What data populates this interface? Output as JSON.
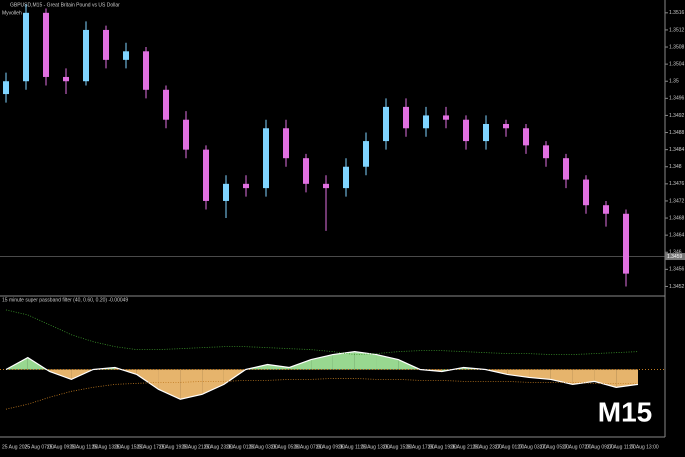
{
  "header": {
    "symbol_title": "GBPUSD,M15 - Great Britain Pound vs US Dollar",
    "indicator_name": "Myvolleh"
  },
  "timeframe_badge": "M15",
  "time_axis": [
    "25 Aug 2025",
    "25 Aug 07:00",
    "25 Aug 09:00",
    "25 Aug 11:00",
    "25 Aug 13:00",
    "25 Aug 15:00",
    "25 Aug 17:00",
    "25 Aug 19:00",
    "25 Aug 21:00",
    "25 Aug 23:00",
    "26 Aug 01:00",
    "26 Aug 03:00",
    "26 Aug 05:00",
    "26 Aug 07:00",
    "26 Aug 09:00",
    "26 Aug 11:00",
    "26 Aug 13:00",
    "26 Aug 15:00",
    "26 Aug 17:00",
    "26 Aug 19:00",
    "26 Aug 21:00",
    "26 Aug 23:00",
    "27 Aug 01:00",
    "27 Aug 03:00",
    "27 Aug 05:00",
    "27 Aug 07:00",
    "27 Aug 09:00",
    "27 Aug 11:00",
    "27 Aug 13:00"
  ],
  "chart_data": [
    {
      "type": "candlestick",
      "up_color": "#7fd4ff",
      "down_color": "#e070e0",
      "ylim": [
        1.345,
        1.3519
      ],
      "yticks": [
        1.3452,
        1.3456,
        1.346,
        1.3464,
        1.3468,
        1.3472,
        1.3476,
        1.348,
        1.3484,
        1.3488,
        1.3492,
        1.3496,
        1.35,
        1.3504,
        1.3508,
        1.3512,
        1.3516
      ],
      "price_line": 1.3459,
      "open": [
        1.3497,
        1.35,
        1.3516,
        1.3501,
        1.35,
        1.3512,
        1.3505,
        1.3507,
        1.3498,
        1.3491,
        1.3484,
        1.3472,
        1.3476,
        1.3475,
        1.3489,
        1.3482,
        1.3476,
        1.3475,
        1.348,
        1.3486,
        1.3494,
        1.3489,
        1.3492,
        1.3491,
        1.3486,
        1.349,
        1.3489,
        1.3485,
        1.3482,
        1.3477,
        1.3471,
        1.3469
      ],
      "close": [
        1.35,
        1.3516,
        1.3501,
        1.35,
        1.3512,
        1.3505,
        1.3507,
        1.3498,
        1.3491,
        1.3484,
        1.3472,
        1.3476,
        1.3475,
        1.3489,
        1.3482,
        1.3476,
        1.3475,
        1.348,
        1.3486,
        1.3494,
        1.3489,
        1.3492,
        1.3491,
        1.3486,
        1.349,
        1.3489,
        1.3485,
        1.3482,
        1.3477,
        1.3471,
        1.3469,
        1.3455
      ],
      "high": [
        1.3502,
        1.3518,
        1.3517,
        1.3503,
        1.3514,
        1.3513,
        1.3509,
        1.3508,
        1.3499,
        1.3493,
        1.3485,
        1.3478,
        1.3478,
        1.3491,
        1.3491,
        1.3483,
        1.3478,
        1.3482,
        1.3488,
        1.3496,
        1.3496,
        1.3494,
        1.3494,
        1.3492,
        1.3492,
        1.3491,
        1.349,
        1.3486,
        1.3483,
        1.3478,
        1.3472,
        1.347
      ],
      "low": [
        1.3495,
        1.3498,
        1.3499,
        1.3497,
        1.3499,
        1.3503,
        1.3503,
        1.3496,
        1.3489,
        1.3482,
        1.347,
        1.3468,
        1.3473,
        1.3473,
        1.348,
        1.3474,
        1.3465,
        1.3473,
        1.3478,
        1.3484,
        1.3487,
        1.3487,
        1.3489,
        1.3484,
        1.3484,
        1.3487,
        1.3483,
        1.348,
        1.3475,
        1.3469,
        1.3466,
        1.3452
      ]
    },
    {
      "type": "line",
      "title": "15 minute super passband filter (40, 0.60, 0.20) -0.00049",
      "ylim": [
        -6.5,
        7
      ],
      "level": 0,
      "grid": false,
      "series": [
        {
          "name": "filter",
          "color": "#ffffff",
          "values": [
            0,
            1.2,
            -0.2,
            -1,
            0,
            0.2,
            -0.5,
            -2,
            -3,
            -2.5,
            -1.5,
            0,
            0.5,
            0.2,
            1,
            1.5,
            1.8,
            1.5,
            1,
            0,
            -0.2,
            0.2,
            0,
            -0.5,
            -0.8,
            -1,
            -1.5,
            -1.2,
            -1.8,
            -1.5
          ]
        },
        {
          "name": "upper",
          "color": "#3c9a2c",
          "values": [
            6,
            5.5,
            4.5,
            3.5,
            2.8,
            2.3,
            2,
            2,
            2.1,
            2.2,
            2.3,
            2.3,
            2.2,
            2.1,
            2,
            1.8,
            1.5,
            1.6,
            1.8,
            1.9,
            1.9,
            1.8,
            1.7,
            1.6,
            1.6,
            1.5,
            1.5,
            1.6,
            1.7,
            1.8
          ]
        },
        {
          "name": "lower",
          "color": "#c07a20",
          "values": [
            -4,
            -3.5,
            -2.8,
            -2.2,
            -1.8,
            -1.5,
            -1.4,
            -1.3,
            -1.3,
            -1.2,
            -1.2,
            -1.1,
            -1.1,
            -1,
            -1,
            -0.9,
            -0.9,
            -1,
            -1,
            -1.1,
            -1.1,
            -1.2,
            -1.2,
            -1.2,
            -1.3,
            -1.3,
            -1.3,
            -1.4,
            -1.4,
            -1.4
          ]
        }
      ],
      "fill_up_color": "#a8f0a0",
      "fill_down_color": "#ffc878"
    }
  ]
}
